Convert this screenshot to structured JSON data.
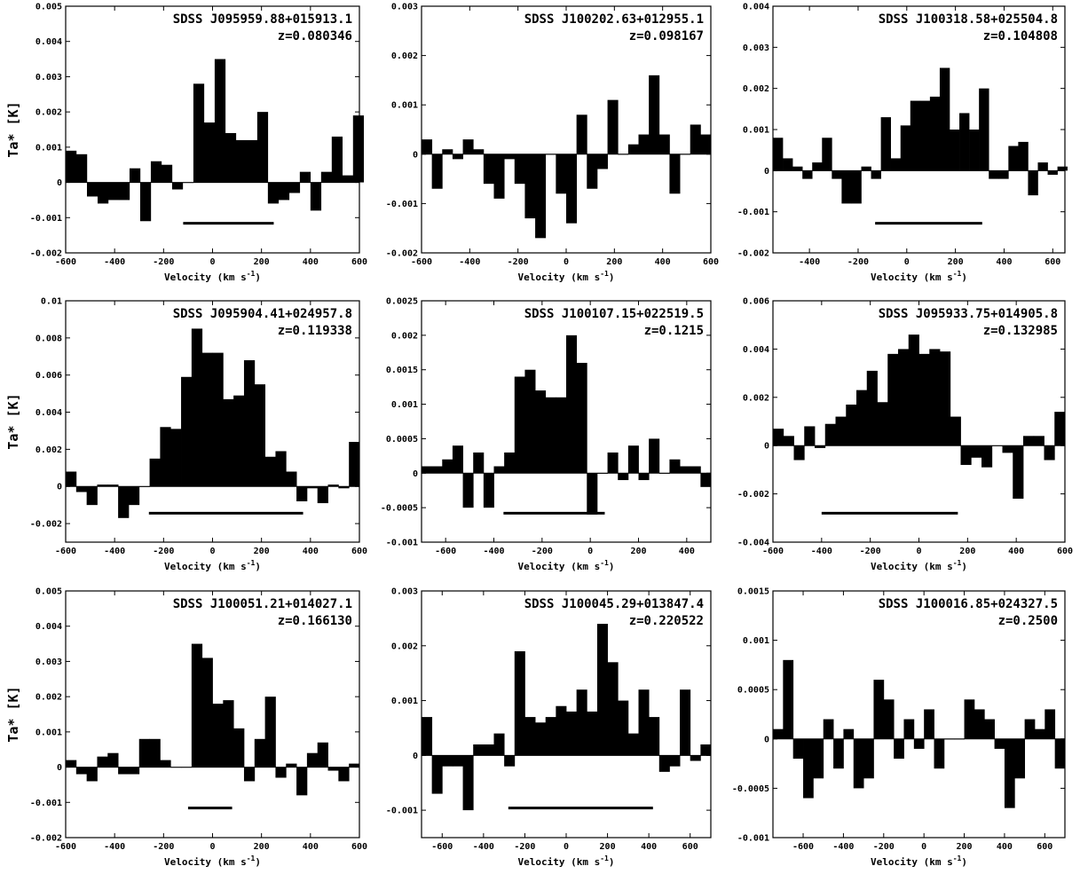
{
  "figure": {
    "ylabel": "Ta* [K]",
    "xlabel": "Velocity (km s",
    "xlabel_exp": "-1",
    "xlabel_close": ")"
  },
  "chart_data": [
    {
      "type": "bar",
      "title": "SDSS J095959.88+015913.1",
      "subtitle": "z=0.080346",
      "xlim": [
        -600,
        600
      ],
      "ylim": [
        -0.002,
        0.005
      ],
      "xticks": [
        -600,
        -400,
        -200,
        0,
        200,
        400,
        600
      ],
      "yticks": [
        -0.002,
        -0.001,
        0,
        0.001,
        0.002,
        0.003,
        0.004,
        0.005
      ],
      "yticklabels": [
        "-0.002",
        "-0.001",
        "0",
        "0.001",
        "0.002",
        "0.003",
        "0.004",
        "0.005"
      ],
      "x": [
        -600,
        -556.52,
        -513.04,
        -469.57,
        -426.09,
        -382.61,
        -339.13,
        -295.65,
        -252.17,
        -208.7,
        -165.22,
        -121.74,
        -78.26,
        -34.78,
        8.7,
        52.17,
        95.65,
        139.13,
        182.61,
        226.09,
        269.57,
        313.04,
        356.52,
        400,
        443.48,
        486.96,
        530.43,
        573.91
      ],
      "values": [
        0.0009,
        0.0008,
        -0.0004,
        -0.0006,
        -0.0005,
        -0.0005,
        0.0004,
        -0.0011,
        0.0006,
        0.0005,
        -0.0002,
        0.0,
        0.0028,
        0.0017,
        0.0035,
        0.0014,
        0.0012,
        0.0012,
        0.002,
        -0.0006,
        -0.0005,
        -0.0003,
        0.0003,
        -0.0008,
        0.0003,
        0.0013,
        0.0002,
        0.0019
      ],
      "width_range": [
        -120,
        250
      ]
    },
    {
      "type": "bar",
      "title": "SDSS J100202.63+012955.1",
      "subtitle": "z=0.098167",
      "xlim": [
        -600,
        600
      ],
      "ylim": [
        -0.002,
        0.003
      ],
      "xticks": [
        -600,
        -400,
        -200,
        0,
        200,
        400,
        600
      ],
      "yticks": [
        -0.002,
        -0.001,
        0,
        0.001,
        0.002,
        0.003
      ],
      "yticklabels": [
        "-0.002",
        "-0.001",
        "0",
        "0.001",
        "0.002",
        "0.003"
      ],
      "x": [
        -600,
        -557.14,
        -514.29,
        -471.43,
        -428.57,
        -385.71,
        -342.86,
        -300,
        -257.14,
        -214.29,
        -171.43,
        -128.57,
        -85.71,
        -42.86,
        0,
        42.86,
        85.71,
        128.57,
        171.43,
        214.29,
        257.14,
        300,
        342.86,
        385.71,
        428.57,
        471.43,
        514.29,
        557.14
      ],
      "values": [
        0.0003,
        -0.0007,
        0.0001,
        -0.0001,
        0.0003,
        0.0001,
        -0.0006,
        -0.0009,
        -0.0001,
        -0.0006,
        -0.0013,
        -0.0017,
        0.0,
        -0.0008,
        -0.0014,
        0.0008,
        -0.0007,
        -0.0003,
        0.0011,
        0.0,
        0.0002,
        0.0004,
        0.0016,
        0.0004,
        -0.0008,
        0.0,
        0.0006,
        0.0004
      ],
      "width_range": null
    },
    {
      "type": "bar",
      "title": "SDSS J100318.58+025504.8",
      "subtitle": "z=0.104808",
      "xlim": [
        -550,
        650
      ],
      "ylim": [
        -0.002,
        0.004
      ],
      "xticks": [
        -400,
        -200,
        0,
        200,
        400,
        600
      ],
      "yticks": [
        -0.002,
        -0.001,
        0,
        0.001,
        0.002,
        0.003,
        0.004
      ],
      "yticklabels": [
        "-0.002",
        "-0.001",
        "0",
        "0.001",
        "0.002",
        "0.003",
        "0.004"
      ],
      "x": [
        -550,
        -509.68,
        -469.35,
        -429.03,
        -388.71,
        -348.39,
        -308.06,
        -267.74,
        -227.42,
        -187.1,
        -146.77,
        -106.45,
        -66.13,
        -25.81,
        14.52,
        54.84,
        95.16,
        135.48,
        175.81,
        216.13,
        256.45,
        296.77,
        337.1,
        377.42,
        417.74,
        458.06,
        498.39,
        538.71,
        579.03,
        619.35
      ],
      "values": [
        0.0008,
        0.0003,
        0.0001,
        -0.0002,
        0.0002,
        0.0008,
        -0.0002,
        -0.0008,
        -0.0008,
        0.0001,
        -0.0002,
        0.0013,
        0.0003,
        0.0011,
        0.0017,
        0.0017,
        0.0018,
        0.0025,
        0.001,
        0.0014,
        0.001,
        0.002,
        -0.0002,
        -0.0002,
        0.0006,
        0.0007,
        -0.0006,
        0.0002,
        -0.0001,
        0.0001
      ],
      "width_range": [
        -130,
        310
      ]
    },
    {
      "type": "bar",
      "title": "SDSS J095904.41+024957.8",
      "subtitle": "z=0.119338",
      "xlim": [
        -600,
        600
      ],
      "ylim": [
        -0.003,
        0.01
      ],
      "xticks": [
        -600,
        -400,
        -200,
        0,
        200,
        400,
        600
      ],
      "yticks": [
        -0.002,
        0,
        0.002,
        0.004,
        0.006,
        0.008,
        0.01
      ],
      "yticklabels": [
        "-0.002",
        "0",
        "0.002",
        "0.004",
        "0.006",
        "0.008",
        "0.01"
      ],
      "x": [
        -600,
        -557.14,
        -514.29,
        -471.43,
        -428.57,
        -385.71,
        -342.86,
        -300,
        -257.14,
        -214.29,
        -171.43,
        -128.57,
        -85.71,
        -42.86,
        0,
        42.86,
        85.71,
        128.57,
        171.43,
        214.29,
        257.14,
        300,
        342.86,
        385.71,
        428.57,
        471.43,
        514.29,
        557.14
      ],
      "values": [
        0.0008,
        -0.0003,
        -0.001,
        0.0001,
        0.0001,
        -0.0017,
        -0.001,
        0.0,
        0.0015,
        0.0032,
        0.0031,
        0.0059,
        0.0085,
        0.0072,
        0.0072,
        0.0047,
        0.0049,
        0.0068,
        0.0055,
        0.0016,
        0.0019,
        0.0008,
        -0.0008,
        -0.0001,
        -0.0009,
        0.0001,
        -0.0001,
        0.0024
      ],
      "width_range": [
        -260,
        370
      ]
    },
    {
      "type": "bar",
      "title": "SDSS J100107.15+022519.5",
      "subtitle": "z=0.1215",
      "xlim": [
        -700,
        500
      ],
      "ylim": [
        -0.001,
        0.0025
      ],
      "xticks": [
        -600,
        -400,
        -200,
        0,
        200,
        400
      ],
      "yticks": [
        -0.001,
        -0.0005,
        0,
        0.0005,
        0.001,
        0.0015,
        0.002,
        0.0025
      ],
      "yticklabels": [
        "-0.001",
        "-0.0005",
        "0",
        "0.0005",
        "0.001",
        "0.0015",
        "0.002",
        "0.0025"
      ],
      "x": [
        -700,
        -657.14,
        -614.29,
        -571.43,
        -528.57,
        -485.71,
        -442.86,
        -400,
        -357.14,
        -314.29,
        -271.43,
        -228.57,
        -185.71,
        -142.86,
        -100,
        -57.14,
        -14.29,
        28.57,
        71.43,
        114.29,
        157.14,
        200,
        242.86,
        285.71,
        328.57,
        371.43,
        414.29,
        457.14
      ],
      "values": [
        0.0001,
        0.0001,
        0.0002,
        0.0004,
        -0.0005,
        0.0003,
        -0.0005,
        0.0001,
        0.0003,
        0.0014,
        0.0015,
        0.0012,
        0.0011,
        0.0011,
        0.002,
        0.0016,
        -0.0006,
        0.0,
        0.0003,
        -0.0001,
        0.0004,
        -0.0001,
        0.0005,
        0.0,
        0.0002,
        0.0001,
        0.0001,
        -0.0002
      ],
      "width_range": [
        -360,
        60
      ]
    },
    {
      "type": "bar",
      "title": "SDSS J095933.75+014905.8",
      "subtitle": "z=0.132985",
      "xlim": [
        -600,
        600
      ],
      "ylim": [
        -0.004,
        0.006
      ],
      "xticks": [
        -600,
        -400,
        -200,
        0,
        200,
        400,
        600
      ],
      "yticks": [
        -0.004,
        -0.002,
        0,
        0.002,
        0.004,
        0.006
      ],
      "yticklabels": [
        "-0.004",
        "-0.002",
        "0",
        "0.002",
        "0.004",
        "0.006"
      ],
      "x": [
        -600,
        -557.14,
        -514.29,
        -471.43,
        -428.57,
        -385.71,
        -342.86,
        -300,
        -257.14,
        -214.29,
        -171.43,
        -128.57,
        -85.71,
        -42.86,
        0,
        42.86,
        85.71,
        128.57,
        171.43,
        214.29,
        257.14,
        300,
        342.86,
        385.71,
        428.57,
        471.43,
        514.29,
        557.14
      ],
      "values": [
        0.0007,
        0.0004,
        -0.0006,
        0.0008,
        -0.0001,
        0.0009,
        0.0012,
        0.0017,
        0.0023,
        0.0031,
        0.0018,
        0.0038,
        0.004,
        0.0046,
        0.0038,
        0.004,
        0.0039,
        0.0012,
        -0.0008,
        -0.0005,
        -0.0009,
        0.0,
        -0.0003,
        -0.0022,
        0.0004,
        0.0004,
        -0.0006,
        0.0014
      ],
      "width_range": [
        -400,
        160
      ]
    },
    {
      "type": "bar",
      "title": "SDSS J100051.21+014027.1",
      "subtitle": "z=0.166130",
      "xlim": [
        -600,
        600
      ],
      "ylim": [
        -0.002,
        0.005
      ],
      "xticks": [
        -600,
        -400,
        -200,
        0,
        200,
        400,
        600
      ],
      "yticks": [
        -0.002,
        -0.001,
        0,
        0.001,
        0.002,
        0.003,
        0.004,
        0.005
      ],
      "yticklabels": [
        "-0.002",
        "-0.001",
        "0",
        "0.001",
        "0.002",
        "0.003",
        "0.004",
        "0.005"
      ],
      "x": [
        -600,
        -557.14,
        -514.29,
        -471.43,
        -428.57,
        -385.71,
        -342.86,
        -300,
        -257.14,
        -214.29,
        -171.43,
        -128.57,
        -85.71,
        -42.86,
        0,
        42.86,
        85.71,
        128.57,
        171.43,
        214.29,
        257.14,
        300,
        342.86,
        385.71,
        428.57,
        471.43,
        514.29,
        557.14
      ],
      "values": [
        0.0002,
        -0.0002,
        -0.0004,
        0.0003,
        0.0004,
        -0.0002,
        -0.0002,
        0.0008,
        0.0008,
        0.0002,
        0.0,
        0.0,
        0.0035,
        0.0031,
        0.0018,
        0.0019,
        0.0011,
        -0.0004,
        0.0008,
        0.002,
        -0.0003,
        0.0001,
        -0.0008,
        0.0004,
        0.0007,
        -0.0001,
        -0.0004,
        0.0001
      ],
      "width_range": [
        -100,
        80
      ]
    },
    {
      "type": "bar",
      "title": "SDSS J100045.29+013847.4",
      "subtitle": "z=0.220522",
      "xlim": [
        -700,
        700
      ],
      "ylim": [
        -0.0015,
        0.003
      ],
      "xticks": [
        -600,
        -400,
        -200,
        0,
        200,
        400,
        600
      ],
      "yticks": [
        -0.001,
        0,
        0.001,
        0.002,
        0.003
      ],
      "yticklabels": [
        "-0.001",
        "0",
        "0.001",
        "0.002",
        "0.003"
      ],
      "x": [
        -700,
        -650,
        -600,
        -550,
        -500,
        -450,
        -400,
        -350,
        -300,
        -250,
        -200,
        -150,
        -100,
        -50,
        0,
        50,
        100,
        150,
        200,
        250,
        300,
        350,
        400,
        450,
        500,
        550,
        600,
        650
      ],
      "values": [
        0.0007,
        -0.0007,
        -0.0002,
        -0.0002,
        -0.001,
        0.0002,
        0.0002,
        0.0004,
        -0.0002,
        0.0019,
        0.0007,
        0.0006,
        0.0007,
        0.0009,
        0.0008,
        0.0012,
        0.0008,
        0.0024,
        0.0017,
        0.001,
        0.0004,
        0.0012,
        0.0007,
        -0.0003,
        -0.0002,
        0.0012,
        -0.0001,
        0.0002
      ],
      "width_range": [
        -280,
        420
      ]
    },
    {
      "type": "bar",
      "title": "SDSS J100016.85+024327.5",
      "subtitle": "z=0.2500",
      "xlim": [
        -750,
        700
      ],
      "ylim": [
        -0.001,
        0.0015
      ],
      "xticks": [
        -600,
        -400,
        -200,
        0,
        200,
        400,
        600
      ],
      "yticks": [
        -0.001,
        -0.0005,
        0,
        0.0005,
        0.001,
        0.0015
      ],
      "yticklabels": [
        "-0.001",
        "-0.0005",
        "0",
        "0.0005",
        "0.001",
        "0.0015"
      ],
      "x": [
        -750,
        -700,
        -650,
        -600,
        -550,
        -500,
        -450,
        -400,
        -350,
        -300,
        -250,
        -200,
        -150,
        -100,
        -50,
        0,
        50,
        100,
        150,
        200,
        250,
        300,
        350,
        400,
        450,
        500,
        550,
        600,
        650
      ],
      "values": [
        0.0001,
        0.0008,
        -0.0002,
        -0.0006,
        -0.0004,
        0.0002,
        -0.0003,
        0.0001,
        -0.0005,
        -0.0004,
        0.0006,
        0.0004,
        -0.0002,
        0.0002,
        -0.0001,
        0.0003,
        -0.0003,
        0.0,
        0.0,
        0.0004,
        0.0003,
        0.0002,
        -0.0001,
        -0.0007,
        -0.0004,
        0.0002,
        0.0001,
        0.0003,
        -0.0003
      ],
      "width_range": null
    }
  ]
}
